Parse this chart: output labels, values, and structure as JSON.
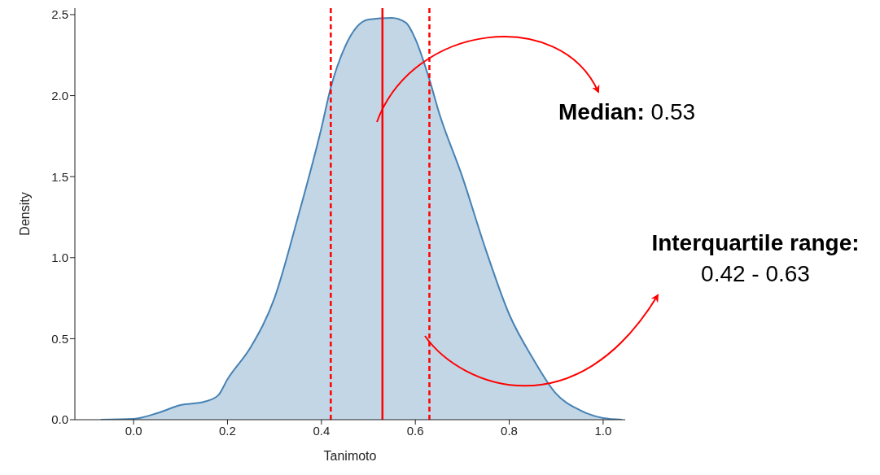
{
  "chart_data": {
    "type": "area",
    "xlabel": "Tanimoto",
    "ylabel": "Density",
    "x": [
      -0.07,
      0.0,
      0.05,
      0.1,
      0.15,
      0.18,
      0.2,
      0.25,
      0.3,
      0.35,
      0.4,
      0.42,
      0.45,
      0.5,
      0.55,
      0.58,
      0.6,
      0.63,
      0.65,
      0.7,
      0.75,
      0.8,
      0.85,
      0.9,
      0.95,
      1.0,
      1.04
    ],
    "series": [
      {
        "color": "#4682b4",
        "values": [
          0,
          0.005,
          0.04,
          0.09,
          0.11,
          0.15,
          0.25,
          0.45,
          0.75,
          1.25,
          1.8,
          2.05,
          2.3,
          2.47,
          2.48,
          2.45,
          2.35,
          2.1,
          1.9,
          1.5,
          1.05,
          0.65,
          0.38,
          0.16,
          0.06,
          0.01,
          0
        ]
      }
    ],
    "xlim": [
      -0.125,
      1.047
    ],
    "ylim": [
      0,
      2.54
    ],
    "xticks": [
      {
        "value": 0,
        "label": "0.0"
      },
      {
        "value": 0.2,
        "label": "0.2"
      },
      {
        "value": 0.4,
        "label": "0.4"
      },
      {
        "value": 0.6,
        "label": "0.6"
      },
      {
        "value": 0.8,
        "label": "0.8"
      },
      {
        "value": 1,
        "label": "1.0"
      }
    ],
    "yticks": [
      {
        "value": 0,
        "label": "0.0"
      },
      {
        "value": 0.5,
        "label": "0.5"
      },
      {
        "value": 1,
        "label": "1.0"
      },
      {
        "value": 1.5,
        "label": "1.5"
      },
      {
        "value": 2,
        "label": "2.0"
      },
      {
        "value": 2.5,
        "label": "2.5"
      }
    ],
    "ref_lines": [
      {
        "axis": "x",
        "value": 0.42,
        "color": "#ff0000",
        "line_style": "dashed"
      },
      {
        "axis": "x",
        "value": 0.53,
        "color": "#ff0000",
        "line_style": "solid"
      },
      {
        "axis": "x",
        "value": 0.63,
        "color": "#ff0000",
        "line_style": "dashed"
      }
    ],
    "annotations": [
      "Median: 0.53",
      "Interquartile range: 0.42 - 0.63"
    ],
    "grid": false
  }
}
